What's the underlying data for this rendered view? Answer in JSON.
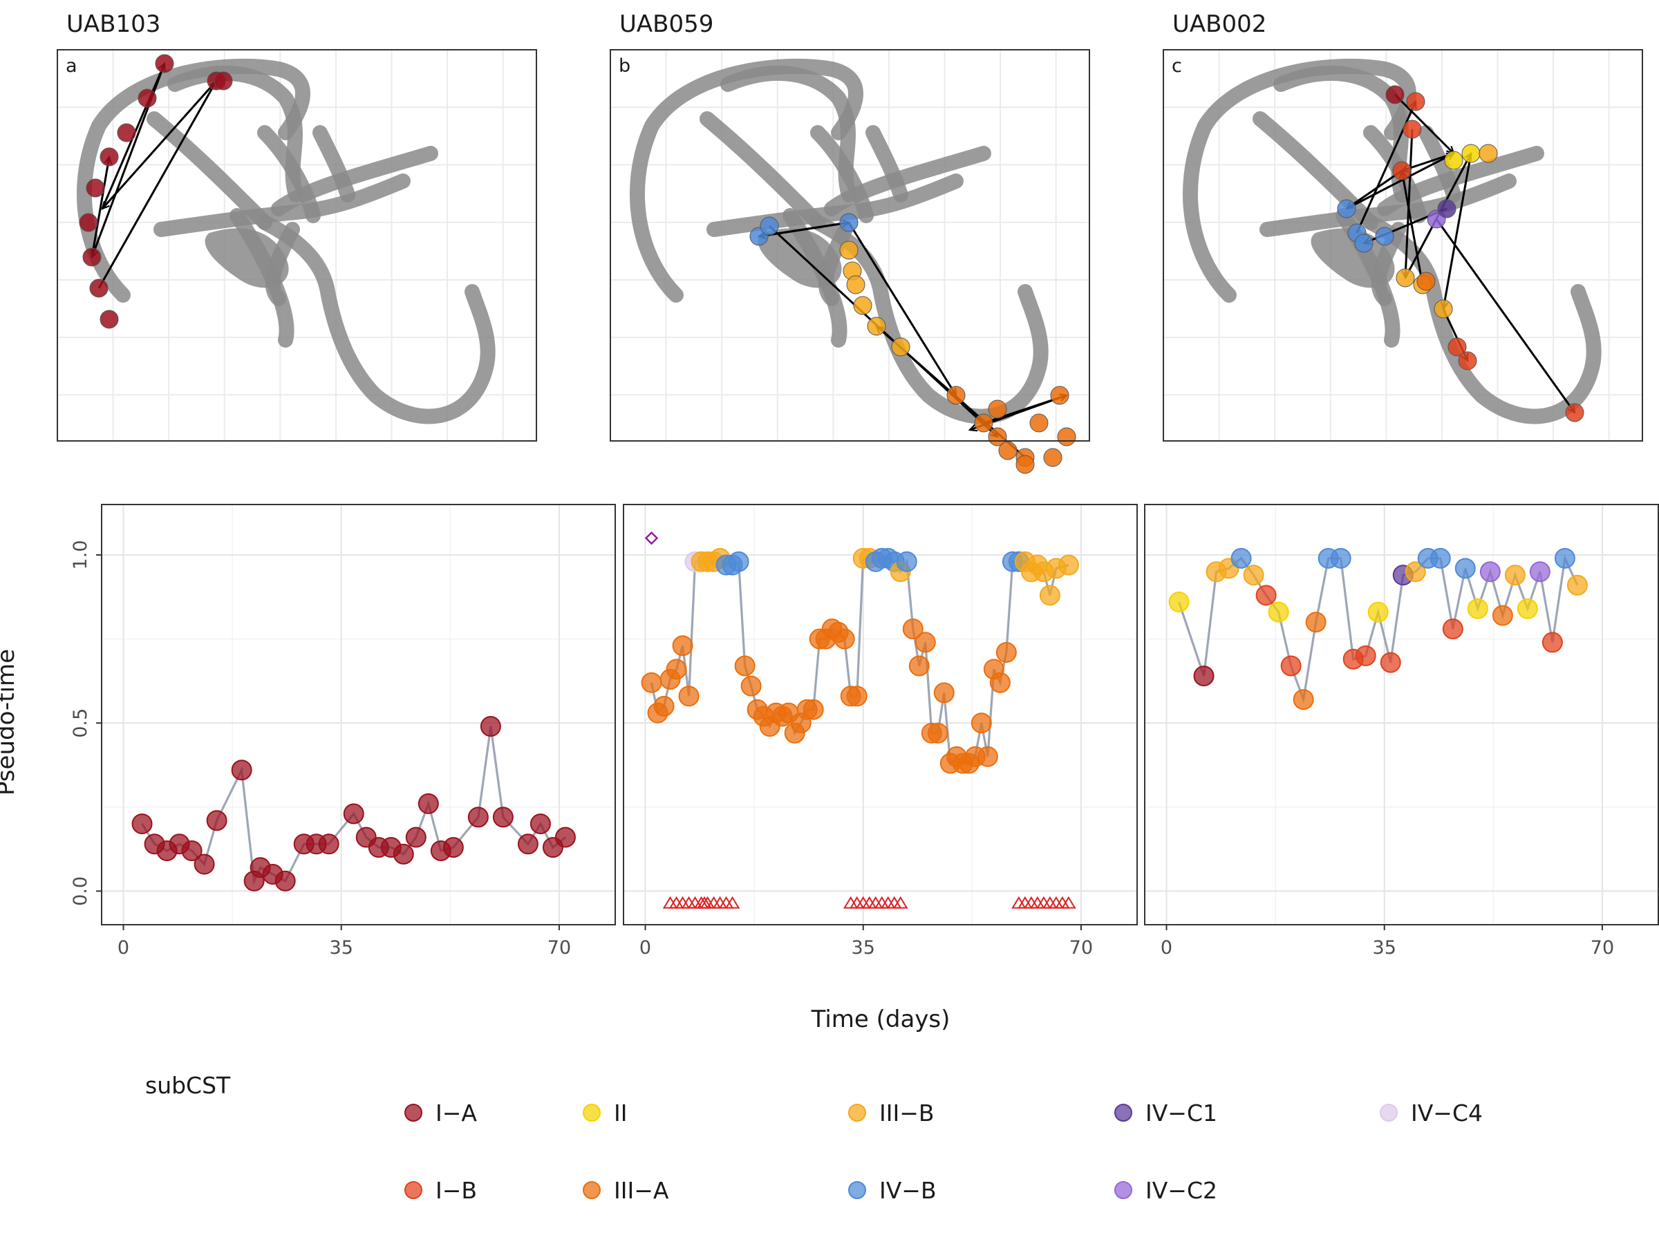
{
  "colors": {
    "I-A": "#9b111e",
    "I-B": "#e2411d",
    "II": "#f5d300",
    "III-A": "#ec6e0c",
    "III-B": "#f6a81a",
    "IV-B": "#4f8ad8",
    "IV-C1": "#5b3b99",
    "IV-C2": "#9467d8",
    "IV-C4": "#ddc9ea",
    "manifold": "#8a8a8a",
    "line": "#8c96a8",
    "menses": "#e02020",
    "marker": "#9a1aa0"
  },
  "top_panels": [
    {
      "title": "UAB103",
      "label": "a"
    },
    {
      "title": "UAB059",
      "label": "b"
    },
    {
      "title": "UAB002",
      "label": "c"
    }
  ],
  "chart_data": [
    {
      "type": "scatter",
      "panel": "UAB103",
      "xlabel": "Time (days)",
      "ylabel": "Pseudo-time",
      "xlim": [
        -3.5,
        79
      ],
      "ylim": [
        -0.1,
        1.15
      ],
      "xticks": [
        "0",
        "35",
        "70"
      ],
      "yticks": [
        "0.0",
        "0.5",
        "1.0"
      ],
      "grid": true,
      "points": [
        {
          "x": 3,
          "y": 0.2,
          "c": "I-A"
        },
        {
          "x": 5,
          "y": 0.14,
          "c": "I-A"
        },
        {
          "x": 7,
          "y": 0.12,
          "c": "I-A"
        },
        {
          "x": 9,
          "y": 0.14,
          "c": "I-A"
        },
        {
          "x": 11,
          "y": 0.12,
          "c": "I-A"
        },
        {
          "x": 13,
          "y": 0.08,
          "c": "I-A"
        },
        {
          "x": 15,
          "y": 0.21,
          "c": "I-A"
        },
        {
          "x": 19,
          "y": 0.36,
          "c": "I-A"
        },
        {
          "x": 21,
          "y": 0.03,
          "c": "I-A"
        },
        {
          "x": 22,
          "y": 0.07,
          "c": "I-A"
        },
        {
          "x": 24,
          "y": 0.05,
          "c": "I-A"
        },
        {
          "x": 26,
          "y": 0.03,
          "c": "I-A"
        },
        {
          "x": 29,
          "y": 0.14,
          "c": "I-A"
        },
        {
          "x": 31,
          "y": 0.14,
          "c": "I-A"
        },
        {
          "x": 33,
          "y": 0.14,
          "c": "I-A"
        },
        {
          "x": 37,
          "y": 0.23,
          "c": "I-A"
        },
        {
          "x": 39,
          "y": 0.16,
          "c": "I-A"
        },
        {
          "x": 41,
          "y": 0.13,
          "c": "I-A"
        },
        {
          "x": 43,
          "y": 0.13,
          "c": "I-A"
        },
        {
          "x": 45,
          "y": 0.11,
          "c": "I-A"
        },
        {
          "x": 47,
          "y": 0.16,
          "c": "I-A"
        },
        {
          "x": 49,
          "y": 0.26,
          "c": "I-A"
        },
        {
          "x": 51,
          "y": 0.12,
          "c": "I-A"
        },
        {
          "x": 53,
          "y": 0.13,
          "c": "I-A"
        },
        {
          "x": 57,
          "y": 0.22,
          "c": "I-A"
        },
        {
          "x": 59,
          "y": 0.49,
          "c": "I-A"
        },
        {
          "x": 61,
          "y": 0.22,
          "c": "I-A"
        },
        {
          "x": 65,
          "y": 0.14,
          "c": "I-A"
        },
        {
          "x": 67,
          "y": 0.2,
          "c": "I-A"
        },
        {
          "x": 69,
          "y": 0.13,
          "c": "I-A"
        },
        {
          "x": 71,
          "y": 0.16,
          "c": "I-A"
        }
      ],
      "menses_days": [],
      "diamonds": []
    },
    {
      "type": "scatter",
      "panel": "UAB059",
      "xlabel": "Time (days)",
      "ylabel": "Pseudo-time",
      "xlim": [
        -3.5,
        79
      ],
      "ylim": [
        -0.1,
        1.15
      ],
      "xticks": [
        "0",
        "35",
        "70"
      ],
      "yticks": [
        "0.0",
        "0.5",
        "1.0"
      ],
      "grid": true,
      "points": [
        {
          "x": 1,
          "y": 0.62,
          "c": "III-A"
        },
        {
          "x": 2,
          "y": 0.53,
          "c": "III-A"
        },
        {
          "x": 3,
          "y": 0.55,
          "c": "III-A"
        },
        {
          "x": 4,
          "y": 0.63,
          "c": "III-A"
        },
        {
          "x": 5,
          "y": 0.66,
          "c": "III-A"
        },
        {
          "x": 6,
          "y": 0.73,
          "c": "III-A"
        },
        {
          "x": 7,
          "y": 0.58,
          "c": "III-A"
        },
        {
          "x": 8,
          "y": 0.98,
          "c": "IV-C4"
        },
        {
          "x": 9,
          "y": 0.98,
          "c": "III-B"
        },
        {
          "x": 10,
          "y": 0.98,
          "c": "III-B"
        },
        {
          "x": 11,
          "y": 0.98,
          "c": "III-B"
        },
        {
          "x": 12,
          "y": 0.99,
          "c": "III-B"
        },
        {
          "x": 13,
          "y": 0.97,
          "c": "IV-B"
        },
        {
          "x": 14,
          "y": 0.97,
          "c": "IV-B"
        },
        {
          "x": 15,
          "y": 0.98,
          "c": "IV-B"
        },
        {
          "x": 16,
          "y": 0.67,
          "c": "III-A"
        },
        {
          "x": 17,
          "y": 0.61,
          "c": "III-A"
        },
        {
          "x": 18,
          "y": 0.54,
          "c": "III-A"
        },
        {
          "x": 19,
          "y": 0.52,
          "c": "III-A"
        },
        {
          "x": 20,
          "y": 0.49,
          "c": "III-A"
        },
        {
          "x": 21,
          "y": 0.53,
          "c": "III-A"
        },
        {
          "x": 22,
          "y": 0.52,
          "c": "III-A"
        },
        {
          "x": 23,
          "y": 0.53,
          "c": "III-A"
        },
        {
          "x": 24,
          "y": 0.47,
          "c": "III-A"
        },
        {
          "x": 25,
          "y": 0.5,
          "c": "III-A"
        },
        {
          "x": 26,
          "y": 0.54,
          "c": "III-A"
        },
        {
          "x": 27,
          "y": 0.54,
          "c": "III-A"
        },
        {
          "x": 28,
          "y": 0.75,
          "c": "III-A"
        },
        {
          "x": 29,
          "y": 0.75,
          "c": "III-A"
        },
        {
          "x": 30,
          "y": 0.78,
          "c": "III-A"
        },
        {
          "x": 31,
          "y": 0.77,
          "c": "III-A"
        },
        {
          "x": 32,
          "y": 0.75,
          "c": "III-A"
        },
        {
          "x": 33,
          "y": 0.58,
          "c": "III-A"
        },
        {
          "x": 34,
          "y": 0.58,
          "c": "III-A"
        },
        {
          "x": 35,
          "y": 0.99,
          "c": "III-B"
        },
        {
          "x": 36,
          "y": 0.99,
          "c": "III-B"
        },
        {
          "x": 37,
          "y": 0.98,
          "c": "IV-B"
        },
        {
          "x": 38,
          "y": 0.99,
          "c": "IV-B"
        },
        {
          "x": 39,
          "y": 0.99,
          "c": "IV-B"
        },
        {
          "x": 40,
          "y": 0.98,
          "c": "IV-B"
        },
        {
          "x": 41,
          "y": 0.95,
          "c": "III-B"
        },
        {
          "x": 42,
          "y": 0.98,
          "c": "IV-B"
        },
        {
          "x": 43,
          "y": 0.78,
          "c": "III-A"
        },
        {
          "x": 44,
          "y": 0.67,
          "c": "III-A"
        },
        {
          "x": 45,
          "y": 0.74,
          "c": "III-A"
        },
        {
          "x": 46,
          "y": 0.47,
          "c": "III-A"
        },
        {
          "x": 47,
          "y": 0.47,
          "c": "III-A"
        },
        {
          "x": 48,
          "y": 0.59,
          "c": "III-A"
        },
        {
          "x": 49,
          "y": 0.38,
          "c": "III-A"
        },
        {
          "x": 50,
          "y": 0.4,
          "c": "III-A"
        },
        {
          "x": 51,
          "y": 0.38,
          "c": "III-A"
        },
        {
          "x": 52,
          "y": 0.38,
          "c": "III-A"
        },
        {
          "x": 53,
          "y": 0.4,
          "c": "III-A"
        },
        {
          "x": 54,
          "y": 0.5,
          "c": "III-A"
        },
        {
          "x": 55,
          "y": 0.4,
          "c": "III-A"
        },
        {
          "x": 56,
          "y": 0.66,
          "c": "III-A"
        },
        {
          "x": 57,
          "y": 0.62,
          "c": "III-A"
        },
        {
          "x": 58,
          "y": 0.71,
          "c": "III-A"
        },
        {
          "x": 59,
          "y": 0.98,
          "c": "IV-B"
        },
        {
          "x": 60,
          "y": 0.98,
          "c": "IV-B"
        },
        {
          "x": 61,
          "y": 0.98,
          "c": "III-B"
        },
        {
          "x": 62,
          "y": 0.95,
          "c": "III-B"
        },
        {
          "x": 63,
          "y": 0.97,
          "c": "III-B"
        },
        {
          "x": 64,
          "y": 0.95,
          "c": "III-B"
        },
        {
          "x": 65,
          "y": 0.88,
          "c": "III-B"
        },
        {
          "x": 66,
          "y": 0.96,
          "c": "III-B"
        },
        {
          "x": 68,
          "y": 0.97,
          "c": "III-B"
        }
      ],
      "menses_days": [
        4,
        5,
        6,
        7,
        8,
        9,
        9.5,
        10,
        11,
        12,
        13,
        14,
        33,
        34,
        35,
        36,
        37,
        38,
        39,
        40,
        41,
        60,
        61,
        62,
        63,
        64,
        65,
        66,
        67,
        68
      ],
      "diamonds": [
        {
          "x": 1,
          "y": 1.05
        }
      ]
    },
    {
      "type": "scatter",
      "panel": "UAB002",
      "xlabel": "Time (days)",
      "ylabel": "Pseudo-time",
      "xlim": [
        -3.5,
        79
      ],
      "ylim": [
        -0.1,
        1.15
      ],
      "xticks": [
        "0",
        "35",
        "70"
      ],
      "yticks": [
        "0.0",
        "0.5",
        "1.0"
      ],
      "grid": true,
      "points": [
        {
          "x": 2,
          "y": 0.86,
          "c": "II"
        },
        {
          "x": 6,
          "y": 0.64,
          "c": "I-A"
        },
        {
          "x": 8,
          "y": 0.95,
          "c": "III-B"
        },
        {
          "x": 10,
          "y": 0.96,
          "c": "III-B"
        },
        {
          "x": 12,
          "y": 0.99,
          "c": "IV-B"
        },
        {
          "x": 14,
          "y": 0.94,
          "c": "III-B"
        },
        {
          "x": 16,
          "y": 0.88,
          "c": "I-B"
        },
        {
          "x": 18,
          "y": 0.83,
          "c": "II"
        },
        {
          "x": 20,
          "y": 0.67,
          "c": "I-B"
        },
        {
          "x": 22,
          "y": 0.57,
          "c": "III-A"
        },
        {
          "x": 24,
          "y": 0.8,
          "c": "III-A"
        },
        {
          "x": 26,
          "y": 0.99,
          "c": "IV-B"
        },
        {
          "x": 28,
          "y": 0.99,
          "c": "IV-B"
        },
        {
          "x": 30,
          "y": 0.69,
          "c": "I-B"
        },
        {
          "x": 32,
          "y": 0.7,
          "c": "I-B"
        },
        {
          "x": 34,
          "y": 0.83,
          "c": "II"
        },
        {
          "x": 36,
          "y": 0.68,
          "c": "I-B"
        },
        {
          "x": 38,
          "y": 0.94,
          "c": "IV-C1"
        },
        {
          "x": 40,
          "y": 0.95,
          "c": "III-B"
        },
        {
          "x": 42,
          "y": 0.99,
          "c": "IV-B"
        },
        {
          "x": 44,
          "y": 0.99,
          "c": "IV-B"
        },
        {
          "x": 46,
          "y": 0.78,
          "c": "I-B"
        },
        {
          "x": 48,
          "y": 0.96,
          "c": "IV-B"
        },
        {
          "x": 50,
          "y": 0.84,
          "c": "II"
        },
        {
          "x": 52,
          "y": 0.95,
          "c": "IV-C2"
        },
        {
          "x": 54,
          "y": 0.82,
          "c": "III-A"
        },
        {
          "x": 56,
          "y": 0.94,
          "c": "III-B"
        },
        {
          "x": 58,
          "y": 0.84,
          "c": "II"
        },
        {
          "x": 60,
          "y": 0.95,
          "c": "IV-C2"
        },
        {
          "x": 62,
          "y": 0.74,
          "c": "I-B"
        },
        {
          "x": 64,
          "y": 0.99,
          "c": "IV-B"
        },
        {
          "x": 66,
          "y": 0.91,
          "c": "III-B"
        }
      ],
      "menses_days": [],
      "diamonds": []
    }
  ],
  "legend": {
    "title": "subCST",
    "items": [
      {
        "label": "I−A",
        "key": "I-A"
      },
      {
        "label": "II",
        "key": "II"
      },
      {
        "label": "III−B",
        "key": "III-B"
      },
      {
        "label": "IV−C1",
        "key": "IV-C1"
      },
      {
        "label": "IV−C4",
        "key": "IV-C4"
      },
      {
        "label": "I−B",
        "key": "I-B"
      },
      {
        "label": "III−A",
        "key": "III-A"
      },
      {
        "label": "IV−B",
        "key": "IV-B"
      },
      {
        "label": "IV−C2",
        "key": "IV-C2"
      }
    ]
  }
}
